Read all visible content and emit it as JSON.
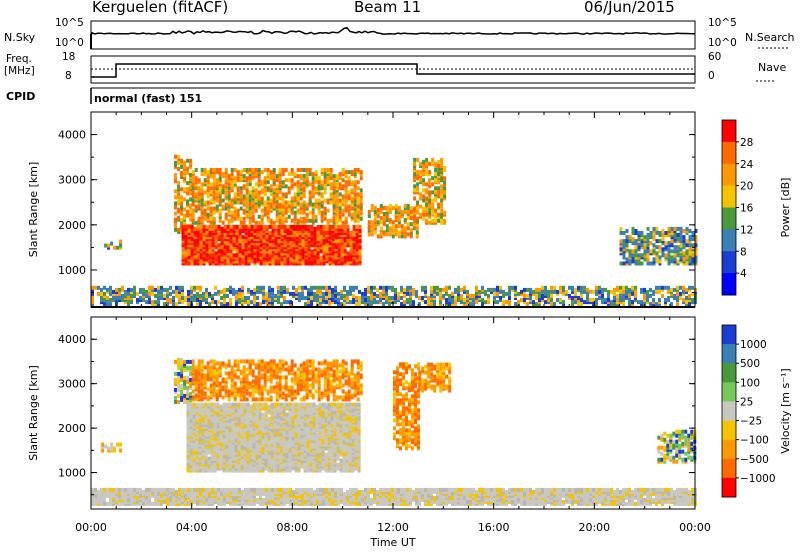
{
  "header": {
    "station": "Kerguelen (fitACF)",
    "beam": "Beam 11",
    "date": "06/Jun/2015"
  },
  "top_panel": {
    "nsky_label": "N.Sky",
    "nsky_ticks": [
      "10^5",
      "10^0"
    ],
    "nsearch_label": "N.Search",
    "nsearch_ticks": [
      "10^5",
      "10^0"
    ],
    "freq_label_1": "Freq.",
    "freq_label_2": "[MHz]",
    "freq_ticks": [
      "18",
      "8"
    ],
    "nave_label": "Nave",
    "nave_ticks": [
      "60",
      "0"
    ],
    "cpid_label": "CPID",
    "cpid_value": "normal (fast) 151"
  },
  "chart_data": [
    {
      "type": "heatmap",
      "name": "power-panel",
      "ylabel": "Slant Range [km]",
      "yticks": [
        "4000",
        "3000",
        "2000",
        "1000"
      ],
      "ylim": [
        180,
        4500
      ],
      "xlim": [
        "00:00",
        "24:00"
      ],
      "colorbar": {
        "label": "Power [dB]",
        "ticks": [
          "28",
          "24",
          "20",
          "16",
          "12",
          "8",
          "4"
        ],
        "colors": [
          "#ff0000",
          "#ff6a00",
          "#ff9900",
          "#f5c400",
          "#4a9a3c",
          "#3a7fb5",
          "#1c3cd6",
          "#0000ff"
        ]
      },
      "regions": [
        {
          "t0": 0.4,
          "t1": 1.2,
          "r0": 1450,
          "r1": 1600,
          "level": "low"
        },
        {
          "t0": 3.3,
          "t1": 4.0,
          "r0": 1800,
          "r1": 3500,
          "level": "mid"
        },
        {
          "t0": 3.6,
          "t1": 10.7,
          "r0": 1100,
          "r1": 1950,
          "level": "high"
        },
        {
          "t0": 4.0,
          "t1": 10.7,
          "r0": 2000,
          "r1": 3200,
          "level": "mid"
        },
        {
          "t0": 11.0,
          "t1": 13.0,
          "r0": 1700,
          "r1": 2400,
          "level": "mid"
        },
        {
          "t0": 12.8,
          "t1": 14.0,
          "r0": 2000,
          "r1": 3400,
          "level": "mid"
        },
        {
          "t0": 21.0,
          "t1": 24.0,
          "r0": 1100,
          "r1": 1900,
          "level": "low"
        },
        {
          "t0": 0.0,
          "t1": 24.0,
          "r0": 200,
          "r1": 600,
          "level": "low"
        }
      ]
    },
    {
      "type": "heatmap",
      "name": "velocity-panel",
      "ylabel": "Slant Range [km]",
      "yticks": [
        "4000",
        "3000",
        "2000",
        "1000"
      ],
      "ylim": [
        180,
        4500
      ],
      "xlim": [
        "00:00",
        "24:00"
      ],
      "xticks": [
        "00:00",
        "04:00",
        "08:00",
        "12:00",
        "16:00",
        "20:00",
        "00:00"
      ],
      "xlabel": "Time UT",
      "colorbar": {
        "label": "Velocity [m s⁻¹]",
        "ticks": [
          "1000",
          "500",
          "100",
          "25",
          "−25",
          "−100",
          "−500",
          "−1000"
        ],
        "colors": [
          "#1c3cd6",
          "#3a7fb5",
          "#4a9a3c",
          "#74c95a",
          "#c8c8c0",
          "#f5c400",
          "#ff9900",
          "#ff6a00",
          "#ff0000"
        ]
      },
      "regions": [
        {
          "t0": 0.4,
          "t1": 1.2,
          "r0": 1450,
          "r1": 1600,
          "level": "neg-low"
        },
        {
          "t0": 3.3,
          "t1": 4.0,
          "r0": 2500,
          "r1": 3500,
          "level": "mix"
        },
        {
          "t0": 3.8,
          "t1": 10.7,
          "r0": 1000,
          "r1": 2500,
          "level": "gray"
        },
        {
          "t0": 4.0,
          "t1": 10.7,
          "r0": 2600,
          "r1": 3500,
          "level": "neg-mid"
        },
        {
          "t0": 12.0,
          "t1": 13.0,
          "r0": 1500,
          "r1": 3400,
          "level": "neg-mid"
        },
        {
          "t0": 13.0,
          "t1": 14.2,
          "r0": 2800,
          "r1": 3400,
          "level": "neg-mid"
        },
        {
          "t0": 22.5,
          "t1": 24.0,
          "r0": 1200,
          "r1": 1900,
          "level": "mix"
        },
        {
          "t0": 0.0,
          "t1": 24.0,
          "r0": 250,
          "r1": 600,
          "level": "gray"
        }
      ]
    }
  ]
}
